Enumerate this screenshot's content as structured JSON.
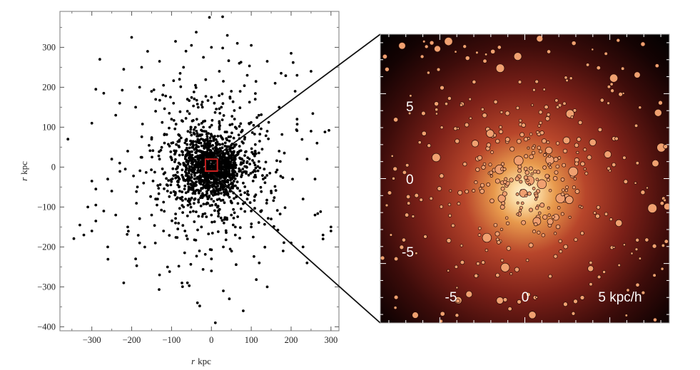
{
  "chart_data": [
    {
      "type": "scatter",
      "xlabel_var": "r",
      "xlabel_unit": "kpc",
      "ylabel_var": "r",
      "ylabel_unit": "kpc",
      "xlim": [
        -380,
        320
      ],
      "ylim": [
        -410,
        390
      ],
      "xticks": [
        -300,
        -200,
        -100,
        0,
        100,
        200,
        300
      ],
      "yticks": [
        -400,
        -300,
        -200,
        -100,
        0,
        100,
        200,
        300
      ],
      "xtick_labels": [
        "−300",
        "−200",
        "−100",
        "0",
        "100",
        "200",
        "300"
      ],
      "ytick_labels": [
        "−400",
        "−300",
        "−200",
        "−100",
        "0",
        "100",
        "200",
        "300"
      ],
      "highlight_box": {
        "x": [
          -15,
          15
        ],
        "y": [
          -10,
          20
        ],
        "color": "#cc1f1f"
      },
      "point_color": "#000000",
      "points": [
        [
          -5,
          375
        ],
        [
          -38,
          338
        ],
        [
          -200,
          325
        ],
        [
          -160,
          290
        ],
        [
          -90,
          315
        ],
        [
          -50,
          305
        ],
        [
          0,
          300
        ],
        [
          40,
          330
        ],
        [
          65,
          310
        ],
        [
          100,
          305
        ],
        [
          200,
          285
        ],
        [
          205,
          262
        ],
        [
          250,
          240
        ],
        [
          -280,
          270
        ],
        [
          -220,
          245
        ],
        [
          -175,
          250
        ],
        [
          -130,
          265
        ],
        [
          -70,
          250
        ],
        [
          -20,
          275
        ],
        [
          20,
          240
        ],
        [
          70,
          260
        ],
        [
          140,
          265
        ],
        [
          175,
          235
        ],
        [
          215,
          230
        ],
        [
          -290,
          195
        ],
        [
          -270,
          185
        ],
        [
          -230,
          160
        ],
        [
          -180,
          200
        ],
        [
          -120,
          205
        ],
        [
          -80,
          220
        ],
        [
          -40,
          205
        ],
        [
          30,
          215
        ],
        [
          90,
          230
        ],
        [
          160,
          210
        ],
        [
          210,
          190
        ],
        [
          -360,
          70
        ],
        [
          -300,
          110
        ],
        [
          -240,
          130
        ],
        [
          -190,
          150
        ],
        [
          -140,
          140
        ],
        [
          -95,
          160
        ],
        [
          -60,
          170
        ],
        [
          0,
          175
        ],
        [
          50,
          190
        ],
        [
          110,
          170
        ],
        [
          170,
          150
        ],
        [
          215,
          120
        ],
        [
          250,
          90
        ],
        [
          295,
          92
        ],
        [
          285,
          88
        ],
        [
          -310,
          -100
        ],
        [
          -290,
          -95
        ],
        [
          -290,
          -135
        ],
        [
          -260,
          -200
        ],
        [
          -240,
          -120
        ],
        [
          -210,
          -150
        ],
        [
          -180,
          -190
        ],
        [
          -150,
          -120
        ],
        [
          -120,
          -160
        ],
        [
          -90,
          -140
        ],
        [
          -60,
          -180
        ],
        [
          -30,
          -210
        ],
        [
          0,
          -230
        ],
        [
          30,
          -200
        ],
        [
          60,
          -170
        ],
        [
          100,
          -150
        ],
        [
          150,
          -130
        ],
        [
          200,
          -190
        ],
        [
          240,
          -240
        ],
        [
          260,
          -120
        ],
        [
          300,
          -150
        ],
        [
          280,
          -170
        ],
        [
          -220,
          -290
        ],
        [
          -60,
          -290
        ],
        [
          0,
          -260
        ],
        [
          30,
          -310
        ],
        [
          45,
          -330
        ],
        [
          -35,
          -340
        ],
        [
          10,
          -390
        ],
        [
          80,
          -360
        ],
        [
          140,
          -300
        ],
        [
          -190,
          -230
        ],
        [
          -130,
          -270
        ],
        [
          120,
          -240
        ],
        [
          180,
          -210
        ],
        [
          230,
          -200
        ],
        [
          -260,
          -30
        ],
        [
          -250,
          -60
        ],
        [
          -230,
          10
        ],
        [
          -250,
          20
        ],
        [
          -210,
          40
        ],
        [
          260,
          -30
        ],
        [
          240,
          20
        ],
        [
          265,
          60
        ],
        [
          230,
          -80
        ],
        [
          -300,
          -35
        ],
        [
          -290,
          -55
        ],
        [
          -330,
          -145
        ],
        [
          -270,
          -110
        ],
        [
          -300,
          -160
        ],
        [
          -320,
          -170
        ],
        [
          300,
          -160
        ],
        [
          280,
          -180
        ],
        [
          -100,
          60
        ],
        [
          -80,
          30
        ],
        [
          -60,
          -30
        ],
        [
          -40,
          -60
        ],
        [
          -20,
          -70
        ],
        [
          20,
          -80
        ],
        [
          40,
          -50
        ],
        [
          60,
          20
        ],
        [
          80,
          60
        ],
        [
          60,
          100
        ],
        [
          20,
          110
        ],
        [
          -20,
          100
        ],
        [
          -50,
          80
        ],
        [
          -90,
          -20
        ],
        [
          -110,
          -60
        ],
        [
          -70,
          -100
        ],
        [
          0,
          -120
        ],
        [
          50,
          -120
        ],
        [
          90,
          -80
        ],
        [
          110,
          -20
        ],
        [
          110,
          40
        ],
        [
          80,
          -40
        ],
        [
          -30,
          40
        ],
        [
          30,
          30
        ],
        [
          -10,
          60
        ],
        [
          10,
          -40
        ],
        [
          -45,
          -5
        ],
        [
          45,
          5
        ],
        [
          -70,
          10
        ],
        [
          70,
          -10
        ],
        [
          0,
          80
        ],
        [
          0,
          -80
        ],
        [
          -130,
          20
        ],
        [
          130,
          -30
        ],
        [
          -140,
          -80
        ],
        [
          140,
          90
        ],
        [
          -100,
          120
        ],
        [
          100,
          -110
        ],
        [
          -150,
          70
        ],
        [
          150,
          -60
        ],
        [
          -25,
          -150
        ],
        [
          25,
          150
        ],
        [
          -170,
          -40
        ],
        [
          170,
          40
        ],
        [
          -60,
          140
        ],
        [
          60,
          -150
        ]
      ]
    },
    {
      "type": "scatter",
      "tick_labels": [
        "-5",
        "0",
        "5 kpc/h"
      ],
      "ytick_labels": [
        "5",
        "0",
        "-5"
      ],
      "xlim": [
        -8.5,
        8.5
      ],
      "ylim": [
        -8.5,
        8.5
      ],
      "background": "density-map",
      "colors": {
        "core": "#fff2c8",
        "mid": "#e0893d",
        "outer": "#7a1f1c",
        "edge": "#1a0505",
        "marker": "#f0a070"
      }
    }
  ]
}
